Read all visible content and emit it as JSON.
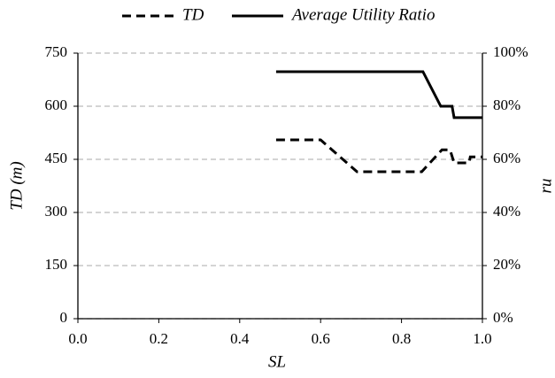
{
  "chart_data": {
    "type": "line",
    "xlabel": "SL",
    "ylabel": "TD (m)",
    "y2label": "ru",
    "series": [
      {
        "name": "TD",
        "color": "#000000",
        "dash": true,
        "x": [
          0.49,
          0.6,
          0.69,
          0.85,
          0.9,
          0.92,
          0.93,
          0.967,
          0.97,
          1.0
        ],
        "values": [
          505,
          505,
          415,
          415,
          477,
          477,
          440,
          440,
          457,
          457
        ]
      },
      {
        "name": "Average Utility Ratio",
        "color": "#000000",
        "dash": false,
        "axis": "y2",
        "x": [
          0.49,
          0.853,
          0.897,
          0.925,
          0.93,
          1.0
        ],
        "values": [
          93,
          93,
          80,
          80,
          75.7,
          75.7
        ]
      }
    ],
    "xlim": [
      0,
      1
    ],
    "xticks": [
      {
        "value": 0,
        "label": "0.0"
      },
      {
        "value": 0.2,
        "label": "0.2"
      },
      {
        "value": 0.4,
        "label": "0.4"
      },
      {
        "value": 0.6,
        "label": "0.6"
      },
      {
        "value": 0.8,
        "label": "0.8"
      },
      {
        "value": 1,
        "label": "1.0"
      }
    ],
    "ylim": [
      0,
      750
    ],
    "yticks": [
      0,
      150,
      300,
      450,
      600,
      750
    ],
    "y2lim": [
      0,
      100
    ],
    "y2ticks": [
      {
        "value": 0,
        "label": "0%"
      },
      {
        "value": 20,
        "label": "20%"
      },
      {
        "value": 40,
        "label": "40%"
      },
      {
        "value": 60,
        "label": "60%"
      },
      {
        "value": 80,
        "label": "80%"
      },
      {
        "value": 100,
        "label": "100%"
      }
    ],
    "grid": true,
    "legend": "top"
  }
}
